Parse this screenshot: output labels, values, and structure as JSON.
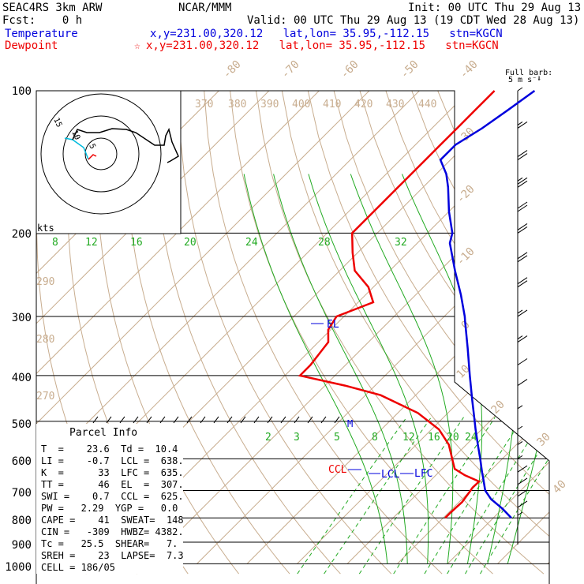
{
  "header": {
    "model": "SEAC4RS  3km ARW",
    "org": "NCAR/MMM",
    "init": "Init: 00 UTC Thu 29 Aug 13",
    "fcst": "Fcst:    0 h",
    "valid": "Valid: 00 UTC Thu 29 Aug 13 (19 CDT Wed 28 Aug 13)",
    "temp_label": "Temperature",
    "temp_loc": "x,y=231.00,320.12   lat,lon= 35.95,-112.15   stn=KGCN",
    "dew_label": "Dewpoint",
    "dew_loc": "x,y=231.00,320.12   lat,lon= 35.95,-112.15   stn=KGCN",
    "barb_title": "Full barb:",
    "barb_sub": "5 m s⁻¹"
  },
  "colors": {
    "temperature": "#0000dd",
    "dewpoint": "#ee0000",
    "isotherm": "#c8ad8f",
    "dry_adiabat": "#c8ad8f",
    "moist_adiabat": "#22aa22",
    "mixing_ratio": "#22aa22",
    "hodo_wind": "#000000",
    "hodo_low": "#00bbdd"
  },
  "pressure_labels": [
    "100",
    "200",
    "300",
    "400",
    "500",
    "600",
    "700",
    "800",
    "900",
    "1000"
  ],
  "isotherm_labels": [
    "-80",
    "-70",
    "-60",
    "-50",
    "-40",
    "-30",
    "-20",
    "-10",
    "0",
    "10",
    "20",
    "30",
    "40"
  ],
  "theta_labels": [
    "370",
    "380",
    "390",
    "400",
    "410",
    "420",
    "430",
    "440",
    "290",
    "280",
    "270"
  ],
  "moist_labels": [
    "8",
    "12",
    "16",
    "20",
    "24",
    "28",
    "32"
  ],
  "mixing_labels": [
    "2",
    "3",
    "5",
    "8",
    "12",
    "16",
    "20",
    "24"
  ],
  "hodo": {
    "kts": "kts",
    "ring_labels": [
      "15",
      "10",
      "5"
    ]
  },
  "annotations": {
    "el": "EL",
    "lcl": "LCL",
    "lfc": "LFC",
    "ccl": "CCL",
    "m": "M"
  },
  "parcel_info": {
    "title": "Parcel Info",
    "rows": [
      "T  =    23.6  Td =  10.4",
      "LI =    -0.7  LCL =  638.",
      "K  =      33  LFC =  635.",
      "TT =      46  EL  =  307.",
      "SWI =    0.7  CCL =  625.",
      "PW =   2.29  YGP =   0.0",
      "CAPE =    41  SWEAT=  148",
      "CIN =   -309  HWBZ= 4382.",
      "Tc =   25.5  SHEAR=   7.",
      "SREH =    23  LAPSE=  7.3",
      "CELL = 186/05"
    ]
  },
  "chart_data": {
    "type": "line",
    "title": "",
    "xlabel": "",
    "ylabel": "",
    "y_scale": "log",
    "ylim": [
      1000,
      100
    ],
    "xlim": [
      -40,
      40
    ],
    "series": [
      {
        "name": "Temperature",
        "color": "#0000dd",
        "pressure": [
          800,
          765,
          730,
          700,
          660,
          640,
          600,
          560,
          520,
          490,
          450,
          400,
          350,
          307,
          300,
          270,
          240,
          210,
          200,
          180,
          160,
          150,
          140,
          130,
          120,
          110,
          100
        ],
        "temp": [
          23.6,
          20.0,
          15.8,
          12.9,
          10.1,
          8.6,
          5.6,
          2.3,
          -1.2,
          -3.9,
          -7.8,
          -13.1,
          -19.0,
          -24.9,
          -25.9,
          -31.0,
          -37.0,
          -43.5,
          -45.0,
          -50.0,
          -55.0,
          -58.0,
          -62.0,
          -62.0,
          -60.0,
          -58.5,
          -57.0
        ]
      },
      {
        "name": "Dewpoint",
        "color": "#ee0000",
        "pressure": [
          800,
          780,
          740,
          700,
          690,
          670,
          650,
          630,
          600,
          560,
          520,
          480,
          440,
          420,
          400,
          380,
          340,
          320,
          300,
          280,
          260,
          240,
          220,
          200,
          180,
          160,
          150,
          140,
          130,
          120,
          110,
          100
        ],
        "temp": [
          10.4,
          10.4,
          10.6,
          10.0,
          9.8,
          9.9,
          5.8,
          2.5,
          0.0,
          -3.5,
          -8.5,
          -16.0,
          -27.0,
          -36.0,
          -47.0,
          -47.0,
          -48.0,
          -50.5,
          -51.5,
          -47.0,
          -51.0,
          -57.0,
          -61.0,
          -65.0,
          -65.0,
          -65.0,
          -65.0,
          -65.0,
          -65.0,
          -65.0,
          -65.0,
          -65.0
        ]
      }
    ],
    "isotherms": [
      -80,
      -70,
      -60,
      -50,
      -40,
      -30,
      -20,
      -10,
      0,
      10,
      20,
      30,
      40
    ],
    "dry_adiabats": [
      260,
      270,
      280,
      290,
      300,
      310,
      320,
      330,
      340,
      350,
      360,
      370,
      380,
      390,
      400,
      410,
      420,
      430,
      440
    ],
    "moist_adiabats": [
      8,
      12,
      16,
      20,
      24,
      28,
      32
    ],
    "mixing_ratios": [
      2,
      3,
      5,
      8,
      12,
      16,
      20,
      24
    ],
    "levels": {
      "el_p": 307,
      "lcl_p": 638,
      "lfc_p": 635,
      "ccl_p": 625
    },
    "winds": [
      {
        "p": 100,
        "kt": 5
      },
      {
        "p": 120,
        "kt": 15
      },
      {
        "p": 140,
        "kt": 20
      },
      {
        "p": 160,
        "kt": 25
      },
      {
        "p": 180,
        "kt": 20
      },
      {
        "p": 200,
        "kt": 20
      },
      {
        "p": 230,
        "kt": 20
      },
      {
        "p": 260,
        "kt": 20
      },
      {
        "p": 300,
        "kt": 15
      },
      {
        "p": 340,
        "kt": 15
      },
      {
        "p": 380,
        "kt": 10
      },
      {
        "p": 420,
        "kt": 10
      },
      {
        "p": 470,
        "kt": 5
      },
      {
        "p": 520,
        "kt": 5
      },
      {
        "p": 560,
        "kt": 5
      },
      {
        "p": 600,
        "kt": 5
      },
      {
        "p": 640,
        "kt": 10
      },
      {
        "p": 680,
        "kt": 10
      },
      {
        "p": 720,
        "kt": 10
      },
      {
        "p": 760,
        "kt": 10
      },
      {
        "p": 790,
        "kt": 5
      }
    ]
  }
}
